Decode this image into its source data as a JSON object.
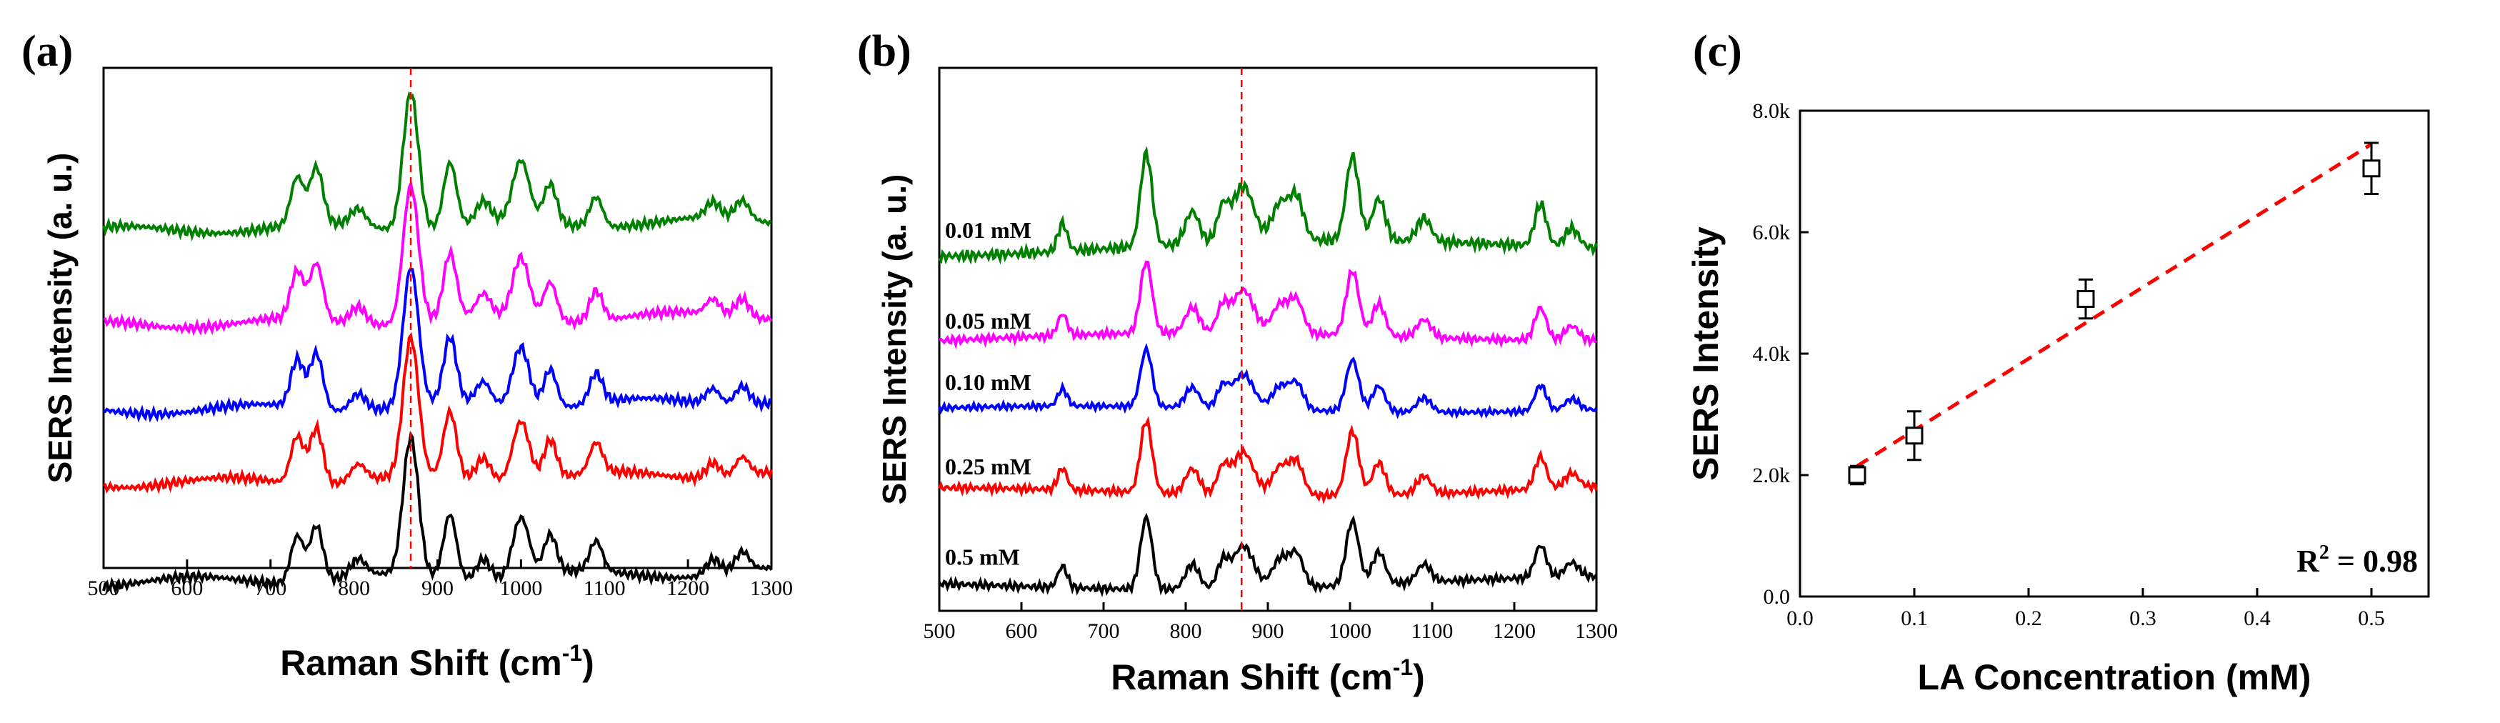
{
  "chart_data": [
    {
      "panel": "(a)",
      "type": "line",
      "title": "",
      "xlabel_main": "Raman Shift (cm",
      "xlabel_sup": "-1",
      "xlabel_end": ")",
      "ylabel": "SERS Intensity (a. u.)",
      "xlim": [
        500,
        1300
      ],
      "xticks": [
        "500",
        "600",
        "700",
        "800",
        "900",
        "1000",
        "1100",
        "1200",
        "1300"
      ],
      "reference_line_x": 868,
      "series": [
        {
          "name": "0.01 mM",
          "color": "#008000",
          "offset": 4.1,
          "scale": 1.0
        },
        {
          "name": "0.05 mM",
          "color": "#ff00ff",
          "offset": 3.0,
          "scale": 1.0
        },
        {
          "name": "0.10 mM",
          "color": "#0000ff",
          "offset": 2.0,
          "scale": 1.0
        },
        {
          "name": "0.25 mM",
          "color": "#ff0000",
          "offset": 1.15,
          "scale": 1.0
        },
        {
          "name": "0.5 mM",
          "color": "#000000",
          "offset": 0.0,
          "scale": 1.0
        }
      ]
    },
    {
      "panel": "(b)",
      "type": "line",
      "title": "",
      "xlabel_main": "Raman Shift (cm",
      "xlabel_sup": "-1",
      "xlabel_end": ")",
      "ylabel": "SERS Intensity (a. u.)",
      "xlim": [
        500,
        1300
      ],
      "xticks": [
        "500",
        "600",
        "700",
        "800",
        "900",
        "1000",
        "1100",
        "1200",
        "1300"
      ],
      "reference_line_x": 868,
      "series": [
        {
          "name": "0.01 mM",
          "color": "#008000",
          "offset": 5.0,
          "scale": 1.3
        },
        {
          "name": "0.05 mM",
          "color": "#ff00ff",
          "offset": 3.75,
          "scale": 1.0
        },
        {
          "name": "0.10 mM",
          "color": "#0000ff",
          "offset": 2.75,
          "scale": 0.8
        },
        {
          "name": "0.25 mM",
          "color": "#ff0000",
          "offset": 1.6,
          "scale": 1.0
        },
        {
          "name": "0.5 mM",
          "color": "#000000",
          "offset": 0.3,
          "scale": 1.0
        }
      ]
    },
    {
      "panel": "(c)",
      "type": "scatter",
      "title": "",
      "xlabel": "LA Concentration (mM)",
      "ylabel": "SERS Intensity",
      "xlim": [
        0.0,
        0.55
      ],
      "ylim": [
        0,
        8000
      ],
      "xticks": [
        "0.0",
        "0.1",
        "0.2",
        "0.3",
        "0.4",
        "0.5"
      ],
      "xtick_values": [
        0.0,
        0.1,
        0.2,
        0.3,
        0.4,
        0.5
      ],
      "yticks": [
        "0.0",
        "2.0k",
        "4.0k",
        "6.0k",
        "8.0k"
      ],
      "ytick_values": [
        0,
        2000,
        4000,
        6000,
        8000
      ],
      "x": [
        0.05,
        0.1,
        0.25,
        0.5
      ],
      "y": [
        2000,
        2650,
        4900,
        7050
      ],
      "yerr": [
        150,
        400,
        320,
        420
      ],
      "fit": {
        "x": [
          0.05,
          0.5
        ],
        "y": [
          2150,
          7450
        ],
        "color": "#ff0000"
      },
      "annotation_base": "R",
      "annotation_sup": "2",
      "annotation_rest": " = 0.98"
    }
  ]
}
